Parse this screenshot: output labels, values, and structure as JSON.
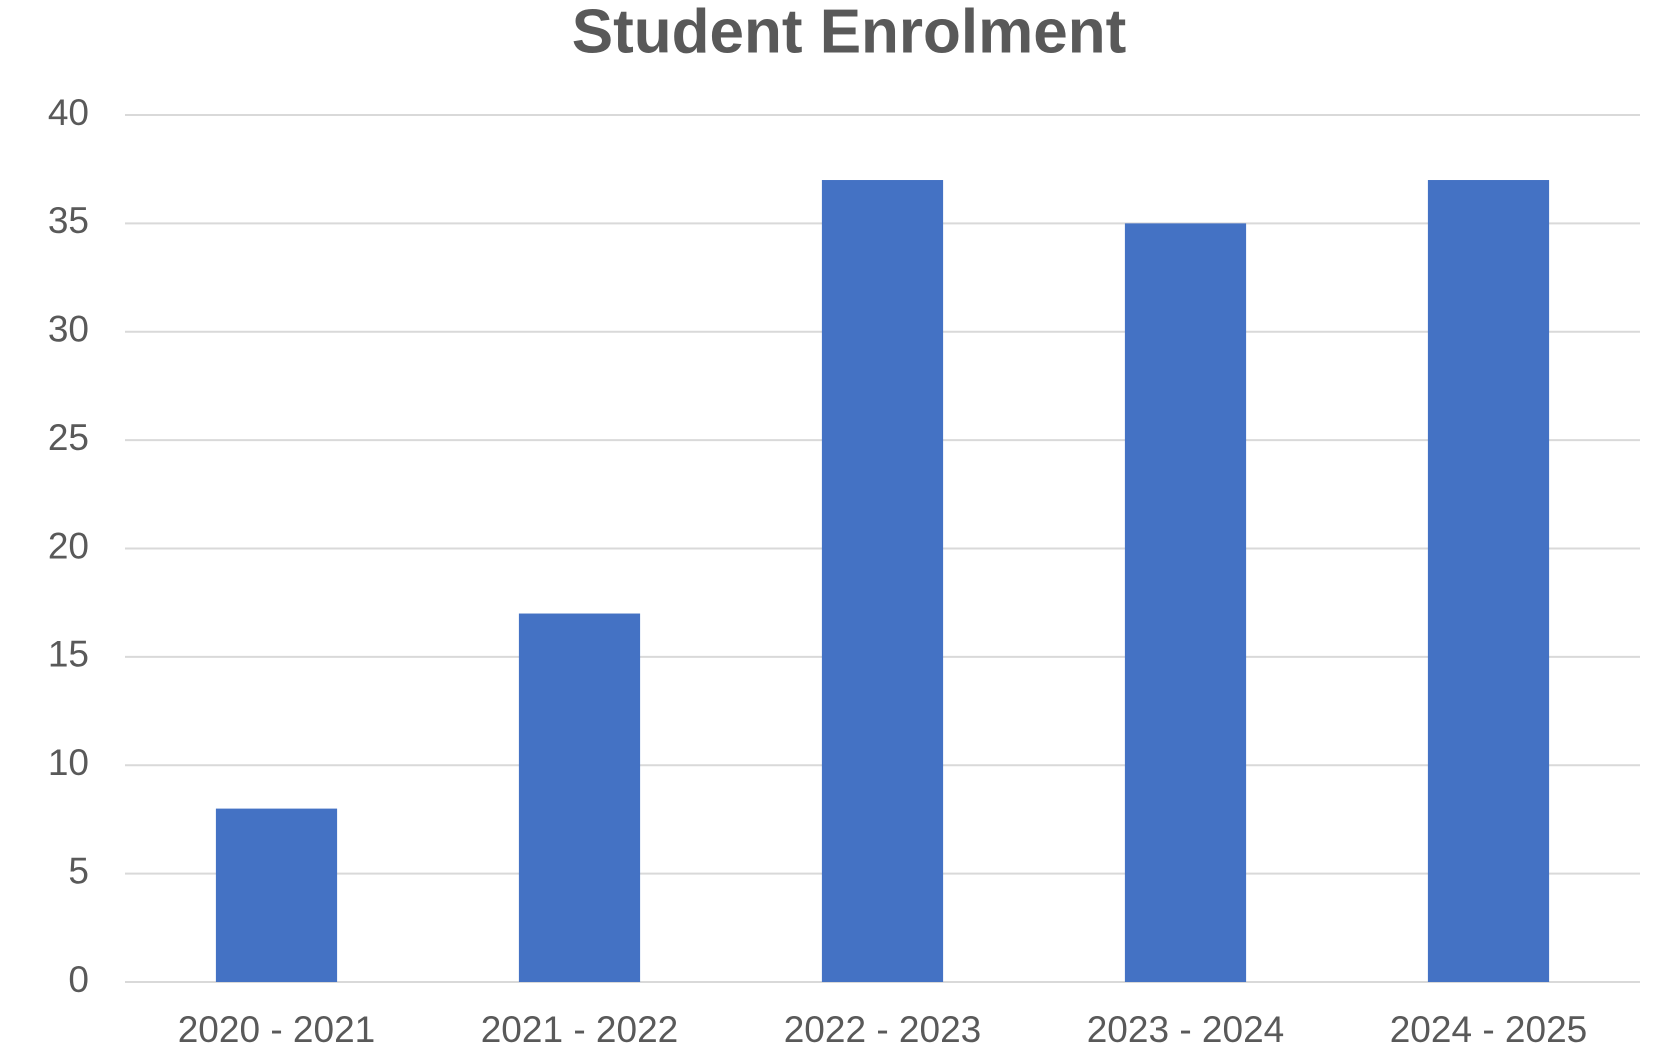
{
  "chart_data": {
    "type": "bar",
    "title": "Student Enrolment",
    "categories": [
      "2020 - 2021",
      "2021 - 2022",
      "2022 - 2023",
      "2023 - 2024",
      "2024 - 2025"
    ],
    "values": [
      8,
      17,
      37,
      35,
      37
    ],
    "color": "#4472c4",
    "ylim": [
      0,
      40
    ],
    "yticks": [
      0,
      5,
      10,
      15,
      20,
      25,
      30,
      35,
      40
    ],
    "grid": true
  }
}
